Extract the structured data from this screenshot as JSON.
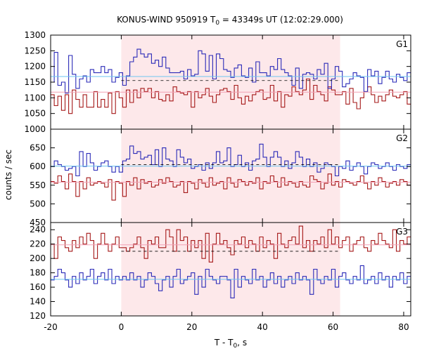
{
  "chart_data": {
    "title": "KONUS-WIND 950919 T",
    "title_sub": "0",
    "title_rest": " = 43349s UT (12:02:29.000)",
    "ylabel": "counts / sec",
    "xlabel": "T - T",
    "xlabel_sub": "0",
    "xlabel_rest": ", s",
    "xlim": [
      -20,
      82
    ],
    "xticks": [
      -20,
      0,
      20,
      40,
      60,
      80
    ],
    "shaded_region": [
      0,
      62
    ],
    "colors": {
      "shade": "#fde8ea",
      "blue": "#2a2ab8",
      "red": "#a51818",
      "blue_bg": "#6ec6f0",
      "red_bg": "#f2a0b4"
    },
    "panels": [
      {
        "label": "G1",
        "ylim": [
          1000,
          1300
        ],
        "yticks": [
          1000,
          1050,
          1100,
          1150,
          1200,
          1250,
          1300
        ],
        "blue_bg": 1168,
        "red_bg": 1118,
        "dash": 1155,
        "blue": [
          1150,
          1245,
          1140,
          1150,
          1115,
          1235,
          1175,
          1130,
          1160,
          1170,
          1150,
          1190,
          1180,
          1180,
          1200,
          1180,
          1190,
          1150,
          1165,
          1180,
          1140,
          1170,
          1215,
          1230,
          1255,
          1240,
          1230,
          1240,
          1210,
          1220,
          1200,
          1230,
          1195,
          1180,
          1180,
          1180,
          1185,
          1160,
          1190,
          1170,
          1175,
          1250,
          1240,
          1185,
          1235,
          1160,
          1240,
          1225,
          1190,
          1185,
          1165,
          1195,
          1205,
          1170,
          1165,
          1195,
          1150,
          1215,
          1180,
          1180,
          1170,
          1200,
          1190,
          1225,
          1190,
          1180,
          1170,
          1140,
          1195,
          1130,
          1175,
          1180,
          1175,
          1160,
          1190,
          1175,
          1210,
          1130,
          1160,
          1200,
          1185,
          1135,
          1145,
          1160,
          1180,
          1170,
          1165,
          1120,
          1190,
          1170,
          1185,
          1145,
          1165,
          1185,
          1160,
          1150,
          1175,
          1165,
          1155,
          1180
        ],
        "red": [
          1110,
          1075,
          1105,
          1060,
          1110,
          1050,
          1125,
          1095,
          1070,
          1110,
          1070,
          1070,
          1120,
          1070,
          1095,
          1070,
          1115,
          1050,
          1120,
          1100,
          1070,
          1125,
          1085,
          1125,
          1100,
          1130,
          1120,
          1130,
          1100,
          1120,
          1095,
          1090,
          1110,
          1090,
          1135,
          1120,
          1115,
          1110,
          1120,
          1070,
          1120,
          1100,
          1110,
          1130,
          1105,
          1085,
          1110,
          1125,
          1130,
          1120,
          1095,
          1140,
          1100,
          1080,
          1105,
          1090,
          1110,
          1120,
          1125,
          1095,
          1100,
          1140,
          1090,
          1120,
          1070,
          1110,
          1105,
          1135,
          1120,
          1110,
          1125,
          1160,
          1095,
          1140,
          1120,
          1110,
          1090,
          1135,
          1125,
          1110,
          1110,
          1120,
          1080,
          1130,
          1085,
          1065,
          1100,
          1120,
          1135,
          1110,
          1085,
          1105,
          1090,
          1110,
          1125,
          1105,
          1100,
          1110,
          1120,
          1080
        ]
      },
      {
        "label": "G2",
        "ylim": [
          450,
          700
        ],
        "yticks": [
          450,
          500,
          550,
          600,
          650
        ],
        "blue_bg": 601,
        "red_bg": 558,
        "dash": 605,
        "blue": [
          600,
          615,
          605,
          600,
          590,
          595,
          600,
          575,
          640,
          600,
          635,
          610,
          590,
          600,
          610,
          615,
          600,
          585,
          600,
          585,
          615,
          620,
          655,
          635,
          640,
          620,
          625,
          630,
          605,
          645,
          600,
          650,
          620,
          615,
          600,
          645,
          625,
          610,
          620,
          595,
          600,
          605,
          590,
          610,
          595,
          610,
          640,
          610,
          615,
          650,
          600,
          605,
          630,
          600,
          610,
          590,
          615,
          620,
          660,
          625,
          600,
          625,
          640,
          625,
          600,
          615,
          595,
          610,
          640,
          625,
          600,
          620,
          600,
          610,
          585,
          595,
          610,
          605,
          600,
          575,
          600,
          595,
          615,
          590,
          600,
          610,
          600,
          580,
          600,
          610,
          605,
          595,
          600,
          610,
          600,
          590,
          605,
          600,
          595,
          605
        ],
        "red": [
          560,
          555,
          575,
          560,
          540,
          580,
          560,
          520,
          560,
          540,
          570,
          550,
          555,
          560,
          555,
          545,
          565,
          510,
          560,
          555,
          520,
          560,
          550,
          570,
          540,
          565,
          555,
          560,
          545,
          550,
          565,
          555,
          570,
          560,
          545,
          550,
          560,
          530,
          560,
          555,
          540,
          565,
          555,
          545,
          570,
          550,
          555,
          560,
          540,
          570,
          555,
          545,
          565,
          560,
          550,
          560,
          555,
          570,
          540,
          560,
          555,
          575,
          560,
          545,
          570,
          550,
          560,
          555,
          545,
          560,
          550,
          545,
          575,
          565,
          560,
          540,
          555,
          580,
          550,
          560,
          545,
          565,
          560,
          555,
          550,
          560,
          575,
          555,
          540,
          560,
          550,
          570,
          560,
          545,
          555,
          560,
          550,
          565,
          560,
          550
        ]
      },
      {
        "label": "G3",
        "ylim": [
          120,
          250
        ],
        "yticks": [
          120,
          140,
          160,
          180,
          200,
          220,
          240
        ],
        "blue_bg": 171,
        "red_bg": 219,
        "dash": 210,
        "blue": [
          170,
          175,
          185,
          180,
          170,
          160,
          175,
          165,
          180,
          170,
          175,
          185,
          165,
          175,
          180,
          170,
          185,
          165,
          175,
          170,
          175,
          170,
          180,
          170,
          175,
          160,
          170,
          180,
          175,
          165,
          155,
          170,
          175,
          160,
          175,
          185,
          165,
          170,
          175,
          180,
          150,
          175,
          160,
          185,
          175,
          170,
          165,
          175,
          175,
          170,
          145,
          185,
          160,
          175,
          170,
          165,
          185,
          170,
          175,
          160,
          170,
          180,
          165,
          175,
          160,
          170,
          175,
          165,
          180,
          170,
          175,
          170,
          150,
          185,
          170,
          165,
          175,
          170,
          185,
          160,
          175,
          180,
          170,
          165,
          175,
          170,
          190,
          165,
          170,
          175,
          165,
          180,
          170,
          175,
          160,
          175,
          170,
          180,
          165,
          175
        ],
        "red": [
          220,
          200,
          230,
          225,
          215,
          210,
          225,
          215,
          230,
          220,
          235,
          225,
          200,
          220,
          235,
          220,
          210,
          220,
          230,
          215,
          215,
          210,
          215,
          220,
          230,
          215,
          200,
          225,
          220,
          230,
          215,
          215,
          240,
          230,
          210,
          240,
          225,
          230,
          210,
          225,
          215,
          225,
          200,
          235,
          195,
          220,
          235,
          220,
          225,
          215,
          205,
          225,
          220,
          230,
          215,
          225,
          220,
          210,
          230,
          215,
          225,
          220,
          200,
          235,
          220,
          215,
          225,
          230,
          220,
          245,
          215,
          225,
          210,
          225,
          220,
          230,
          215,
          240,
          220,
          230,
          215,
          225,
          230,
          210,
          220,
          225,
          230,
          215,
          210,
          225,
          220,
          235,
          225,
          220,
          215,
          240,
          210,
          225,
          220,
          230
        ]
      }
    ]
  }
}
